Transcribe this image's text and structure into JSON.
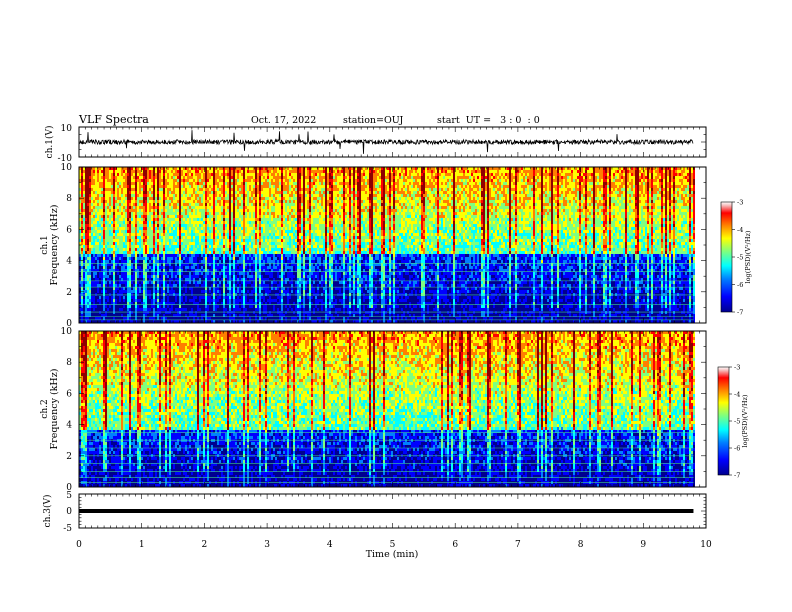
{
  "header": {
    "title": "VLF Spectra",
    "date": "Oct. 17, 2022",
    "station": "station=OUJ",
    "start_time": "start  UT =   3 : 0  : 0"
  },
  "colors": {
    "frame": "#000000",
    "waveform": "#000000",
    "colormap": [
      "#00008f",
      "#0000ff",
      "#007fff",
      "#00ffff",
      "#7fff7f",
      "#ffff00",
      "#ff7f00",
      "#ff0000",
      "#8f0000",
      "#ffffff"
    ]
  },
  "chart_data": [
    {
      "type": "line",
      "panel": "ch1-waveform",
      "ylabel": "ch.1(V)",
      "ylim": [
        -10,
        10
      ],
      "y_ticks": [
        "10",
        "-10"
      ],
      "xlim": [
        0,
        10
      ],
      "series": [
        {
          "x_range_min": [
            0.0,
            9.8
          ],
          "y_baseline": 0,
          "noise_amplitude": 1.5,
          "spike_amplitude": 8
        }
      ]
    },
    {
      "type": "heatmap",
      "panel": "ch1-spectrogram",
      "ylabel": "ch.1",
      "ylabel2": "Frequency (kHz)",
      "ylim": [
        0,
        10
      ],
      "y_ticks": [
        "0",
        "2",
        "4",
        "6",
        "8",
        "10"
      ],
      "xlim": [
        0,
        10
      ],
      "data_extent_x": [
        0.0,
        9.8
      ],
      "colorbar": {
        "label": "log(PSD)(V²/Hz)",
        "range": [
          -7,
          -3
        ],
        "ticks": [
          "-3",
          "-4",
          "-5",
          "-6",
          "-7"
        ]
      },
      "background_boundary_khz": 4.5,
      "line_frequencies_khz": [
        0.2,
        0.4,
        0.7,
        1.2,
        1.8,
        2.3,
        2.7,
        3.3,
        3.8
      ]
    },
    {
      "type": "heatmap",
      "panel": "ch2-spectrogram",
      "ylabel": "ch.2",
      "ylabel2": "Frequency (kHz)",
      "ylim": [
        0,
        10
      ],
      "y_ticks": [
        "0",
        "2",
        "4",
        "6",
        "8",
        "10"
      ],
      "xlim": [
        0,
        10
      ],
      "data_extent_x": [
        0.0,
        9.8
      ],
      "colorbar": {
        "label": "log(PSD)(V²/Hz)",
        "range": [
          -7,
          -3
        ],
        "ticks": [
          "-3",
          "-4",
          "-5",
          "-6",
          "-7"
        ]
      },
      "background_boundary_khz": 3.7,
      "line_frequencies_khz": [
        0.3,
        0.6,
        1.0,
        1.5,
        2.0,
        2.5,
        3.0,
        3.5
      ]
    },
    {
      "type": "line",
      "panel": "ch3-waveform",
      "ylabel": "ch.3(V)",
      "ylim": [
        -5,
        5
      ],
      "y_ticks": [
        "5",
        "0",
        "-5"
      ],
      "xlim": [
        0,
        10
      ],
      "series": [
        {
          "x_range_min": [
            0.0,
            9.8
          ],
          "y_value": 0
        }
      ]
    }
  ],
  "time_axis": {
    "label": "Time (min)",
    "ticks": [
      "0",
      "1",
      "2",
      "3",
      "4",
      "5",
      "6",
      "7",
      "8",
      "9",
      "10"
    ]
  }
}
